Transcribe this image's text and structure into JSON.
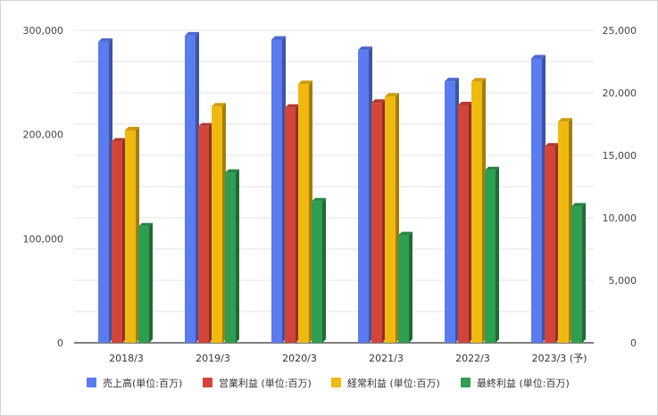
{
  "chart_data": {
    "type": "bar",
    "categories": [
      "2018/3",
      "2019/3",
      "2020/3",
      "2021/3",
      "2022/3",
      "2023/3 (予)"
    ],
    "series": [
      {
        "name": "売上高(単位:百万)",
        "axis": "left",
        "color": "#5b7bf0",
        "values": [
          289000,
          295000,
          291000,
          281000,
          251000,
          273000
        ]
      },
      {
        "name": "営業利益 (単位:百万)",
        "axis": "right",
        "color": "#d3453b",
        "values": [
          16100,
          17300,
          18800,
          19200,
          19000,
          15700
        ]
      },
      {
        "name": "経常利益 (単位:百万)",
        "axis": "right",
        "color": "#f0b90f",
        "values": [
          17000,
          18900,
          20700,
          19700,
          20900,
          17700
        ]
      },
      {
        "name": "最終利益 (単位:百万)",
        "axis": "right",
        "color": "#2e9e50",
        "values": [
          9300,
          13600,
          11300,
          8600,
          13800,
          10900
        ]
      }
    ],
    "y_left": {
      "ticks": [
        0,
        100000,
        200000,
        300000
      ],
      "tick_labels": [
        "0",
        "100,000",
        "200,000",
        "300,000"
      ],
      "range": [
        0,
        300000
      ]
    },
    "y_right": {
      "ticks": [
        0,
        5000,
        10000,
        15000,
        20000,
        25000
      ],
      "tick_labels": [
        "0",
        "5,000",
        "10,000",
        "15,000",
        "20,000",
        "25,000"
      ],
      "range": [
        0,
        25000
      ]
    },
    "grid": true,
    "legend_position": "bottom"
  }
}
